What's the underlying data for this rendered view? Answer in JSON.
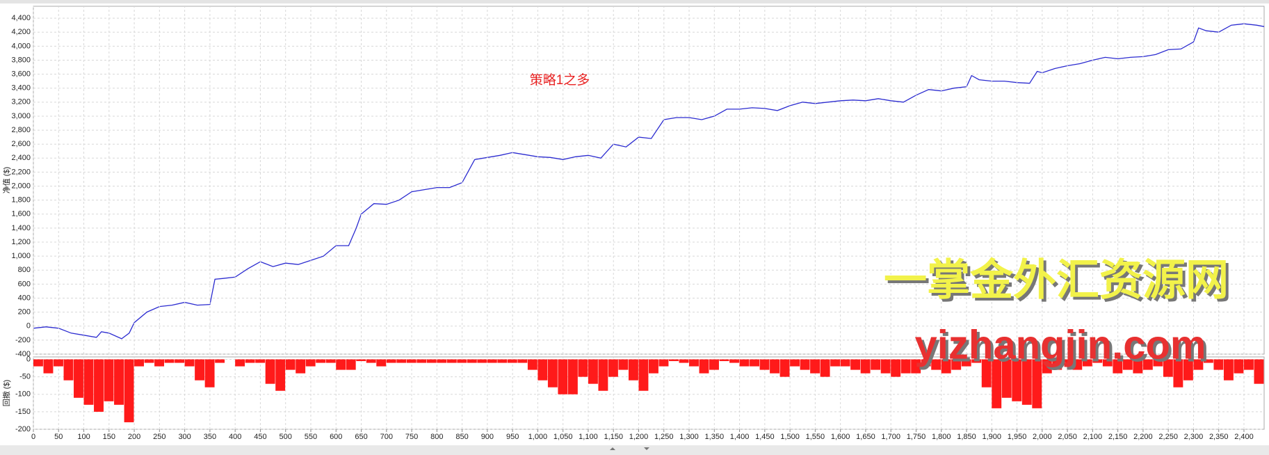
{
  "chart_data": [
    {
      "type": "line",
      "ylabel": "净值 ($)",
      "annotation": "策略1之多",
      "watermarks": [
        "一掌金外汇资源网",
        "yizhangjin.com"
      ],
      "color": "#2b2bd0",
      "grid": true,
      "ylim": [
        -400,
        4570
      ],
      "xlim": [
        0,
        2440
      ],
      "yticks": [
        -400,
        -200,
        0,
        200,
        400,
        600,
        800,
        {
          "value": 1000,
          "label": "1,000"
        },
        {
          "value": 1200,
          "label": "1,200"
        },
        {
          "value": 1400,
          "label": "1,400"
        },
        {
          "value": 1600,
          "label": "1,600"
        },
        {
          "value": 1800,
          "label": "1,800"
        },
        {
          "value": 2000,
          "label": "2,000"
        },
        {
          "value": 2200,
          "label": "2,200"
        },
        {
          "value": 2400,
          "label": "2,400"
        },
        {
          "value": 2600,
          "label": "2,600"
        },
        {
          "value": 2800,
          "label": "2,800"
        },
        {
          "value": 3000,
          "label": "3,000"
        },
        {
          "value": 3200,
          "label": "3,200"
        },
        {
          "value": 3400,
          "label": "3,400"
        },
        {
          "value": 3600,
          "label": "3,600"
        },
        {
          "value": 3800,
          "label": "3,800"
        },
        {
          "value": 4000,
          "label": "4,000"
        },
        {
          "value": 4200,
          "label": "4,200"
        },
        {
          "value": 4400,
          "label": "4,400"
        }
      ],
      "x": [
        0,
        25,
        50,
        75,
        100,
        125,
        135,
        150,
        175,
        190,
        200,
        225,
        250,
        275,
        300,
        325,
        350,
        360,
        375,
        400,
        425,
        450,
        475,
        500,
        525,
        550,
        575,
        600,
        625,
        640,
        650,
        675,
        700,
        725,
        750,
        775,
        800,
        825,
        850,
        875,
        900,
        925,
        950,
        975,
        1000,
        1025,
        1050,
        1075,
        1100,
        1125,
        1150,
        1175,
        1200,
        1225,
        1250,
        1275,
        1300,
        1325,
        1350,
        1375,
        1400,
        1425,
        1450,
        1475,
        1500,
        1525,
        1550,
        1575,
        1600,
        1625,
        1650,
        1675,
        1700,
        1725,
        1750,
        1775,
        1800,
        1825,
        1850,
        1860,
        1875,
        1900,
        1925,
        1950,
        1975,
        1990,
        2000,
        2025,
        2050,
        2075,
        2100,
        2125,
        2150,
        2175,
        2200,
        2225,
        2250,
        2275,
        2300,
        2310,
        2325,
        2350,
        2375,
        2400,
        2425,
        2440
      ],
      "values": [
        -30,
        -10,
        -30,
        -100,
        -130,
        -160,
        -80,
        -100,
        -180,
        -100,
        50,
        200,
        280,
        300,
        340,
        300,
        310,
        670,
        680,
        700,
        820,
        920,
        850,
        900,
        880,
        940,
        1000,
        1150,
        1150,
        1400,
        1600,
        1750,
        1740,
        1800,
        1920,
        1950,
        1980,
        1980,
        2050,
        2380,
        2410,
        2440,
        2480,
        2450,
        2420,
        2410,
        2380,
        2420,
        2440,
        2400,
        2600,
        2560,
        2700,
        2680,
        2950,
        2980,
        2980,
        2950,
        3000,
        3100,
        3100,
        3120,
        3110,
        3080,
        3150,
        3200,
        3180,
        3200,
        3220,
        3230,
        3220,
        3250,
        3220,
        3200,
        3300,
        3380,
        3360,
        3400,
        3420,
        3580,
        3520,
        3500,
        3500,
        3480,
        3470,
        3640,
        3620,
        3680,
        3720,
        3750,
        3800,
        3840,
        3820,
        3840,
        3850,
        3880,
        3950,
        3960,
        4060,
        4260,
        4220,
        4200,
        4300,
        4320,
        4300,
        4280
      ]
    },
    {
      "type": "bar",
      "ylabel": "回撤 ($)",
      "color": "#ff1a1a",
      "grid": true,
      "ylim": [
        -200,
        7
      ],
      "xlim": [
        0,
        2440
      ],
      "bar_width": 20,
      "yticks": [
        0,
        -50,
        -100,
        -150,
        -200
      ],
      "xticks": [
        0,
        50,
        100,
        150,
        200,
        250,
        300,
        350,
        400,
        450,
        500,
        550,
        600,
        650,
        700,
        750,
        800,
        850,
        900,
        950,
        {
          "value": 1000,
          "label": "1,000"
        },
        {
          "value": 1050,
          "label": "1,050"
        },
        {
          "value": 1100,
          "label": "1,100"
        },
        {
          "value": 1150,
          "label": "1,150"
        },
        {
          "value": 1200,
          "label": "1,200"
        },
        {
          "value": 1250,
          "label": "1,250"
        },
        {
          "value": 1300,
          "label": "1,300"
        },
        {
          "value": 1350,
          "label": "1,350"
        },
        {
          "value": 1400,
          "label": "1,400"
        },
        {
          "value": 1450,
          "label": "1,450"
        },
        {
          "value": 1500,
          "label": "1,500"
        },
        {
          "value": 1550,
          "label": "1,550"
        },
        {
          "value": 1600,
          "label": "1,600"
        },
        {
          "value": 1650,
          "label": "1,650"
        },
        {
          "value": 1700,
          "label": "1,700"
        },
        {
          "value": 1750,
          "label": "1,750"
        },
        {
          "value": 1800,
          "label": "1,800"
        },
        {
          "value": 1850,
          "label": "1,850"
        },
        {
          "value": 1900,
          "label": "1,900"
        },
        {
          "value": 1950,
          "label": "1,950"
        },
        {
          "value": 2000,
          "label": "2,000"
        },
        {
          "value": 2050,
          "label": "2,050"
        },
        {
          "value": 2100,
          "label": "2,100"
        },
        {
          "value": 2150,
          "label": "2,150"
        },
        {
          "value": 2200,
          "label": "2,200"
        },
        {
          "value": 2250,
          "label": "2,250"
        },
        {
          "value": 2300,
          "label": "2,300"
        },
        {
          "value": 2350,
          "label": "2,350"
        },
        {
          "value": 2400,
          "label": "2,400"
        }
      ],
      "x": [
        0,
        20,
        40,
        60,
        80,
        100,
        120,
        140,
        160,
        180,
        200,
        220,
        240,
        260,
        280,
        300,
        320,
        340,
        360,
        380,
        400,
        420,
        440,
        460,
        480,
        500,
        520,
        540,
        560,
        580,
        600,
        620,
        640,
        660,
        680,
        700,
        720,
        740,
        760,
        780,
        800,
        820,
        840,
        860,
        880,
        900,
        920,
        940,
        960,
        980,
        1000,
        1020,
        1040,
        1060,
        1080,
        1100,
        1120,
        1140,
        1160,
        1180,
        1200,
        1220,
        1240,
        1260,
        1280,
        1300,
        1320,
        1340,
        1360,
        1380,
        1400,
        1420,
        1440,
        1460,
        1480,
        1500,
        1520,
        1540,
        1560,
        1580,
        1600,
        1620,
        1640,
        1660,
        1680,
        1700,
        1720,
        1740,
        1760,
        1780,
        1800,
        1820,
        1840,
        1860,
        1880,
        1900,
        1920,
        1940,
        1960,
        1980,
        2000,
        2020,
        2040,
        2060,
        2080,
        2100,
        2120,
        2140,
        2160,
        2180,
        2200,
        2220,
        2240,
        2260,
        2280,
        2300,
        2320,
        2340,
        2360,
        2380,
        2400,
        2420
      ],
      "values": [
        -20,
        -40,
        -20,
        -60,
        -110,
        -130,
        -150,
        -120,
        -130,
        -180,
        -20,
        -10,
        -20,
        -10,
        -10,
        -20,
        -60,
        -80,
        -10,
        0,
        -20,
        -10,
        -10,
        -70,
        -90,
        -30,
        -40,
        -20,
        -10,
        -10,
        -30,
        -30,
        -5,
        -10,
        -20,
        -10,
        -10,
        -10,
        -10,
        -10,
        -10,
        -10,
        -10,
        -10,
        -10,
        -10,
        -10,
        -10,
        -10,
        -30,
        -60,
        -80,
        -100,
        -100,
        -50,
        -70,
        -90,
        -50,
        -30,
        -60,
        -90,
        -40,
        -20,
        -5,
        -10,
        -20,
        -40,
        -30,
        -5,
        -10,
        -20,
        -20,
        -30,
        -40,
        -50,
        -20,
        -30,
        -40,
        -50,
        -20,
        -20,
        -30,
        -40,
        -30,
        -40,
        -50,
        -40,
        -40,
        -20,
        -30,
        -40,
        -30,
        -20,
        -10,
        -80,
        -140,
        -110,
        -120,
        -130,
        -140,
        -40,
        -30,
        -10,
        -30,
        -20,
        -10,
        -20,
        -40,
        -30,
        -40,
        -30,
        -20,
        -50,
        -80,
        -60,
        -30,
        -10,
        -30,
        -60,
        -40,
        -30,
        -70
      ]
    }
  ]
}
